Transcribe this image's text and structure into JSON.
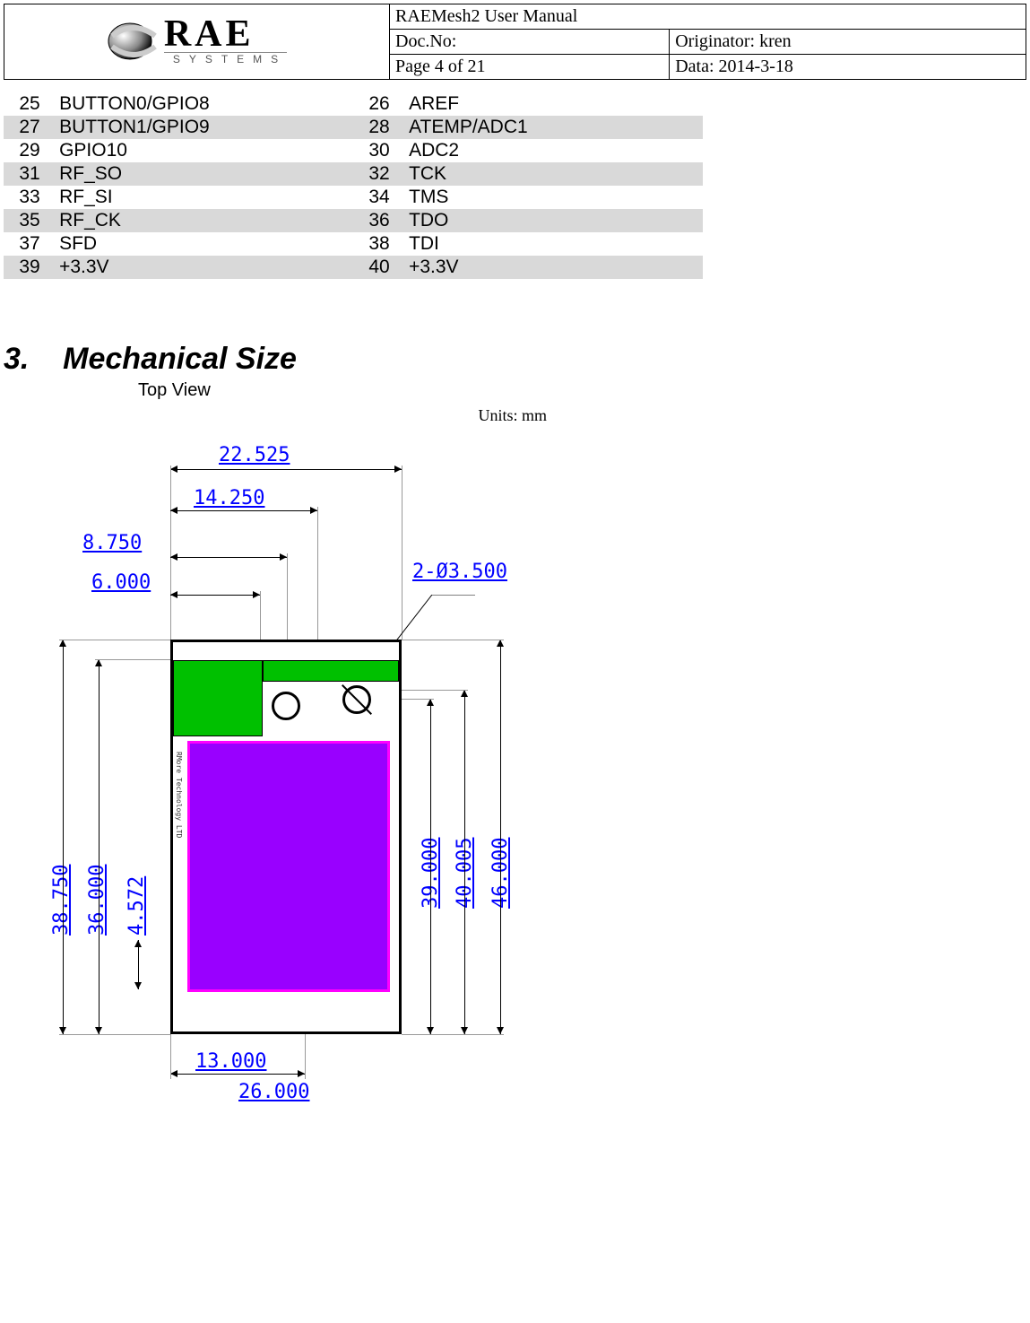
{
  "header": {
    "logo_main": "RAE",
    "logo_sub": "SYSTEMS",
    "title": "RAEMesh2 User Manual",
    "docno_label": "Doc.No:",
    "originator": "Originator: kren",
    "page": "Page 4 of 21",
    "date": "Data: 2014-3-18"
  },
  "pins": [
    {
      "n1": "25",
      "p1": "BUTTON0/GPIO8",
      "n2": "26",
      "p2": "AREF",
      "stripe": false
    },
    {
      "n1": "27",
      "p1": "BUTTON1/GPIO9",
      "n2": "28",
      "p2": "ATEMP/ADC1",
      "stripe": true
    },
    {
      "n1": "29",
      "p1": "GPIO10",
      "n2": "30",
      "p2": "ADC2",
      "stripe": false
    },
    {
      "n1": "31",
      "p1": "RF_SO",
      "n2": "32",
      "p2": "TCK",
      "stripe": true
    },
    {
      "n1": "33",
      "p1": "RF_SI",
      "n2": "34",
      "p2": "TMS",
      "stripe": false
    },
    {
      "n1": "35",
      "p1": "RF_CK",
      "n2": "36",
      "p2": "TDO",
      "stripe": true
    },
    {
      "n1": "37",
      "p1": "SFD",
      "n2": "38",
      "p2": "TDI",
      "stripe": false
    },
    {
      "n1": "39",
      "p1": "+3.3V",
      "n2": "40",
      "p2": "+3.3V",
      "stripe": true
    }
  ],
  "section": {
    "number": "3.",
    "title": "Mechanical Size",
    "caption": "Top View",
    "units": "Units: mm"
  },
  "dims": {
    "w_total": "22.525",
    "w_inner": "14.250",
    "x_off1": "8.750",
    "x_off2": "6.000",
    "hole": "2-Ø3.500",
    "h_full": "38.750",
    "h_mid": "36.000",
    "h_small": "4.572",
    "h_r1": "39.000",
    "h_r2": "40.005",
    "h_r3": "46.000",
    "bot1": "13.000",
    "bot2": "26.000"
  },
  "colors": {
    "stripe": "#d9d9d9",
    "green": "#00c000",
    "purple": "#9900ff",
    "magenta_border": "#ff00ff",
    "dim_blue": "#0000ff"
  }
}
